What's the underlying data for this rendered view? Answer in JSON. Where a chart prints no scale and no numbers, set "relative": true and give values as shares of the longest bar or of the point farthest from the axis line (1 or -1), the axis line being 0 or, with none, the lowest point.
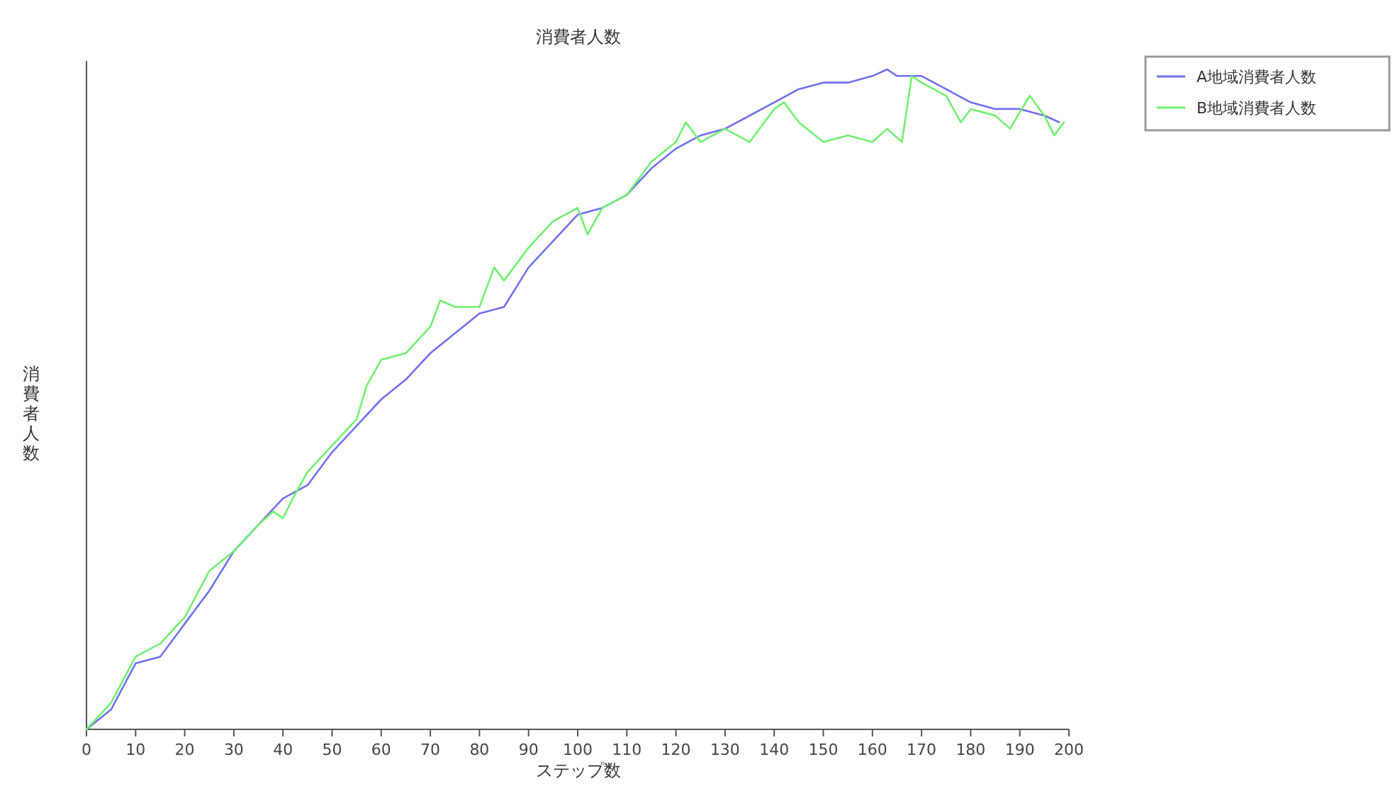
{
  "chart_data": {
    "type": "line",
    "title": "消費者人数",
    "xlabel": "ステップ数",
    "ylabel": "消費者人数",
    "relative": true,
    "xlim": [
      0,
      200
    ],
    "xticks": [
      0,
      10,
      20,
      30,
      40,
      50,
      60,
      70,
      80,
      90,
      100,
      110,
      120,
      130,
      140,
      150,
      160,
      170,
      180,
      190,
      200
    ],
    "legend": "top right",
    "series": [
      {
        "name": "A地域消費者人数",
        "color": "#7070f0",
        "x": [
          0,
          5,
          10,
          15,
          20,
          25,
          30,
          35,
          40,
          45,
          50,
          55,
          60,
          65,
          70,
          75,
          80,
          85,
          90,
          95,
          100,
          105,
          110,
          115,
          120,
          125,
          130,
          135,
          140,
          145,
          150,
          155,
          160,
          163,
          165,
          170,
          175,
          180,
          185,
          190,
          195,
          198
        ],
        "values": [
          0,
          0.03,
          0.1,
          0.11,
          0.16,
          0.21,
          0.27,
          0.31,
          0.35,
          0.37,
          0.42,
          0.46,
          0.5,
          0.53,
          0.57,
          0.6,
          0.63,
          0.64,
          0.7,
          0.74,
          0.78,
          0.79,
          0.81,
          0.85,
          0.88,
          0.9,
          0.91,
          0.93,
          0.95,
          0.97,
          0.98,
          0.98,
          0.99,
          1.0,
          0.99,
          0.99,
          0.97,
          0.95,
          0.94,
          0.94,
          0.93,
          0.92
        ]
      },
      {
        "name": "B地域消費者人数",
        "color": "#70f070",
        "x": [
          0,
          5,
          10,
          15,
          20,
          25,
          30,
          35,
          38,
          40,
          42,
          45,
          50,
          55,
          57,
          60,
          65,
          70,
          72,
          75,
          80,
          83,
          85,
          90,
          95,
          100,
          102,
          105,
          110,
          115,
          120,
          122,
          125,
          130,
          135,
          140,
          142,
          145,
          150,
          155,
          160,
          163,
          166,
          168,
          170,
          175,
          178,
          180,
          185,
          188,
          192,
          195,
          197,
          199
        ],
        "values": [
          0,
          0.04,
          0.11,
          0.13,
          0.17,
          0.24,
          0.27,
          0.31,
          0.33,
          0.32,
          0.35,
          0.39,
          0.43,
          0.47,
          0.52,
          0.56,
          0.57,
          0.61,
          0.65,
          0.64,
          0.64,
          0.7,
          0.68,
          0.73,
          0.77,
          0.79,
          0.75,
          0.79,
          0.81,
          0.86,
          0.89,
          0.92,
          0.89,
          0.91,
          0.89,
          0.94,
          0.95,
          0.92,
          0.89,
          0.9,
          0.89,
          0.91,
          0.89,
          0.99,
          0.98,
          0.96,
          0.92,
          0.94,
          0.93,
          0.91,
          0.96,
          0.93,
          0.9,
          0.92
        ]
      }
    ]
  }
}
